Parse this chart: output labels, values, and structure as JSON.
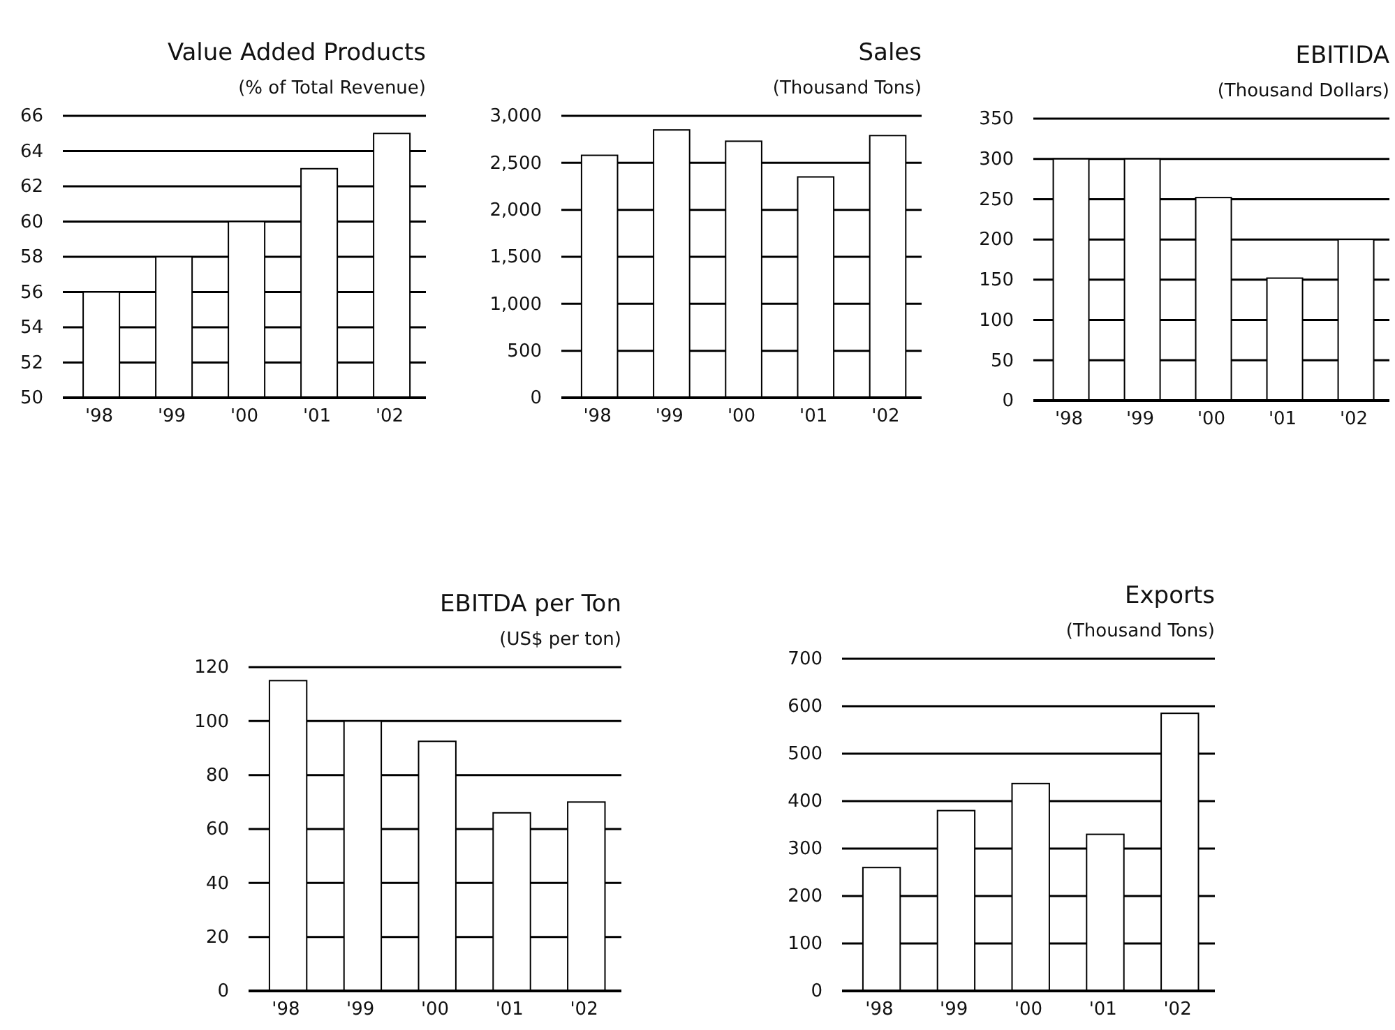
{
  "chart_data": [
    {
      "type": "bar",
      "title": "Value Added Products",
      "subtitle": "(% of Total Revenue)",
      "categories": [
        "'98",
        "'99",
        "'00",
        "'01",
        "'02"
      ],
      "values": [
        56,
        58,
        60,
        63,
        65
      ],
      "color": "#ffffff",
      "ylim": [
        50,
        66
      ],
      "yticks": [
        50,
        52,
        54,
        56,
        58,
        60,
        62,
        64,
        66
      ],
      "grid": "y"
    },
    {
      "type": "bar",
      "title": "Sales",
      "subtitle": "(Thousand Tons)",
      "categories": [
        "'98",
        "'99",
        "'00",
        "'01",
        "'02"
      ],
      "values": [
        2580,
        2850,
        2730,
        2350,
        2790
      ],
      "color": "#ffffff",
      "ylim": [
        0,
        3000
      ],
      "yticks": [
        0,
        500,
        {
          "value": 1000,
          "label": "1,000"
        },
        {
          "value": 1500,
          "label": "1,500"
        },
        {
          "value": 2000,
          "label": "2,000"
        },
        {
          "value": 2500,
          "label": "2,500"
        },
        {
          "value": 3000,
          "label": "3,000"
        }
      ],
      "grid": "y"
    },
    {
      "type": "bar",
      "title": "EBITIDA",
      "subtitle": "(Thousand Dollars)",
      "categories": [
        "'98",
        "'99",
        "'00",
        "'01",
        "'02"
      ],
      "values": [
        300,
        300,
        252,
        152,
        200
      ],
      "color": "#ffffff",
      "ylim": [
        0,
        350
      ],
      "yticks": [
        0,
        50,
        100,
        150,
        200,
        250,
        300,
        350
      ],
      "grid": "y"
    },
    {
      "type": "bar",
      "title": "EBITDA per Ton",
      "subtitle": "(US$ per ton)",
      "categories": [
        "'98",
        "'99",
        "'00",
        "'01",
        "'02"
      ],
      "values": [
        115,
        100,
        92.5,
        66,
        70
      ],
      "color": "#ffffff",
      "ylim": [
        0,
        120
      ],
      "yticks": [
        0,
        20,
        40,
        60,
        80,
        100,
        120
      ],
      "grid": "y"
    },
    {
      "type": "bar",
      "title": "Exports",
      "subtitle": "(Thousand Tons)",
      "categories": [
        "'98",
        "'99",
        "'00",
        "'01",
        "'02"
      ],
      "values": [
        260,
        380,
        437,
        330,
        585
      ],
      "color": "#ffffff",
      "ylim": [
        0,
        700
      ],
      "yticks": [
        0,
        100,
        200,
        300,
        400,
        500,
        600,
        700
      ],
      "grid": "y"
    }
  ]
}
